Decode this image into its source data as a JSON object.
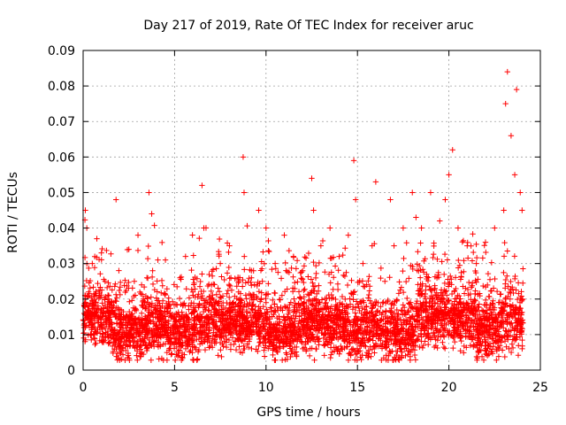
{
  "chart_data": {
    "type": "scatter",
    "title": "Day 217 of 2019, Rate Of TEC Index for receiver aruc",
    "xlabel": "GPS time / hours",
    "ylabel": "ROTI / TECUs",
    "xlim": [
      0,
      25
    ],
    "ylim": [
      0,
      0.09
    ],
    "x_ticks": [
      "0",
      "5",
      "10",
      "15",
      "20",
      "25"
    ],
    "y_ticks": [
      "0",
      "0.01",
      "0.02",
      "0.03",
      "0.04",
      "0.05",
      "0.06",
      "0.07",
      "0.08",
      "0.09"
    ],
    "x_tick_values": [
      0,
      5,
      10,
      15,
      20,
      25
    ],
    "y_tick_values": [
      0,
      0.01,
      0.02,
      0.03,
      0.04,
      0.05,
      0.06,
      0.07,
      0.08,
      0.09
    ],
    "grid": true,
    "marker": "+",
    "color": "#ff0000",
    "series": [
      {
        "x": [
          0.05,
          0.12,
          0.2,
          0.3,
          0.4,
          0.5,
          0.6,
          0.75,
          0.9,
          1.0,
          1.2,
          1.4,
          1.8,
          2.2,
          2.5,
          2.8,
          3.0,
          3.3,
          3.6,
          3.75,
          3.8,
          4.2,
          4.5,
          5.0,
          5.3,
          5.6,
          6.0,
          6.5,
          6.6,
          7.0,
          7.5,
          8.0,
          8.5,
          8.75,
          8.8,
          9.2,
          9.6,
          9.8,
          10.0,
          10.5,
          11.0,
          11.5,
          12.0,
          12.5,
          12.6,
          13.0,
          13.5,
          14.0,
          14.5,
          14.8,
          14.9,
          15.3,
          15.8,
          16.0,
          16.5,
          16.8,
          17.0,
          17.5,
          18.0,
          18.2,
          18.5,
          19.0,
          19.5,
          19.8,
          20.0,
          20.2,
          20.5,
          21.0,
          21.5,
          22.0,
          22.5,
          23.0,
          23.1,
          23.2,
          23.4,
          23.6,
          23.7,
          23.9,
          24.0
        ],
        "y": [
          0.012,
          0.045,
          0.04,
          0.022,
          0.015,
          0.03,
          0.018,
          0.037,
          0.012,
          0.033,
          0.025,
          0.02,
          0.048,
          0.015,
          0.034,
          0.025,
          0.038,
          0.02,
          0.05,
          0.044,
          0.028,
          0.018,
          0.031,
          0.015,
          0.026,
          0.032,
          0.022,
          0.052,
          0.04,
          0.02,
          0.03,
          0.035,
          0.022,
          0.06,
          0.05,
          0.028,
          0.045,
          0.025,
          0.04,
          0.03,
          0.038,
          0.032,
          0.028,
          0.054,
          0.045,
          0.035,
          0.04,
          0.032,
          0.038,
          0.059,
          0.048,
          0.03,
          0.035,
          0.053,
          0.025,
          0.048,
          0.035,
          0.04,
          0.05,
          0.043,
          0.04,
          0.05,
          0.042,
          0.048,
          0.055,
          0.062,
          0.04,
          0.035,
          0.03,
          0.036,
          0.04,
          0.045,
          0.075,
          0.084,
          0.066,
          0.055,
          0.079,
          0.05,
          0.045
        ]
      }
    ]
  }
}
